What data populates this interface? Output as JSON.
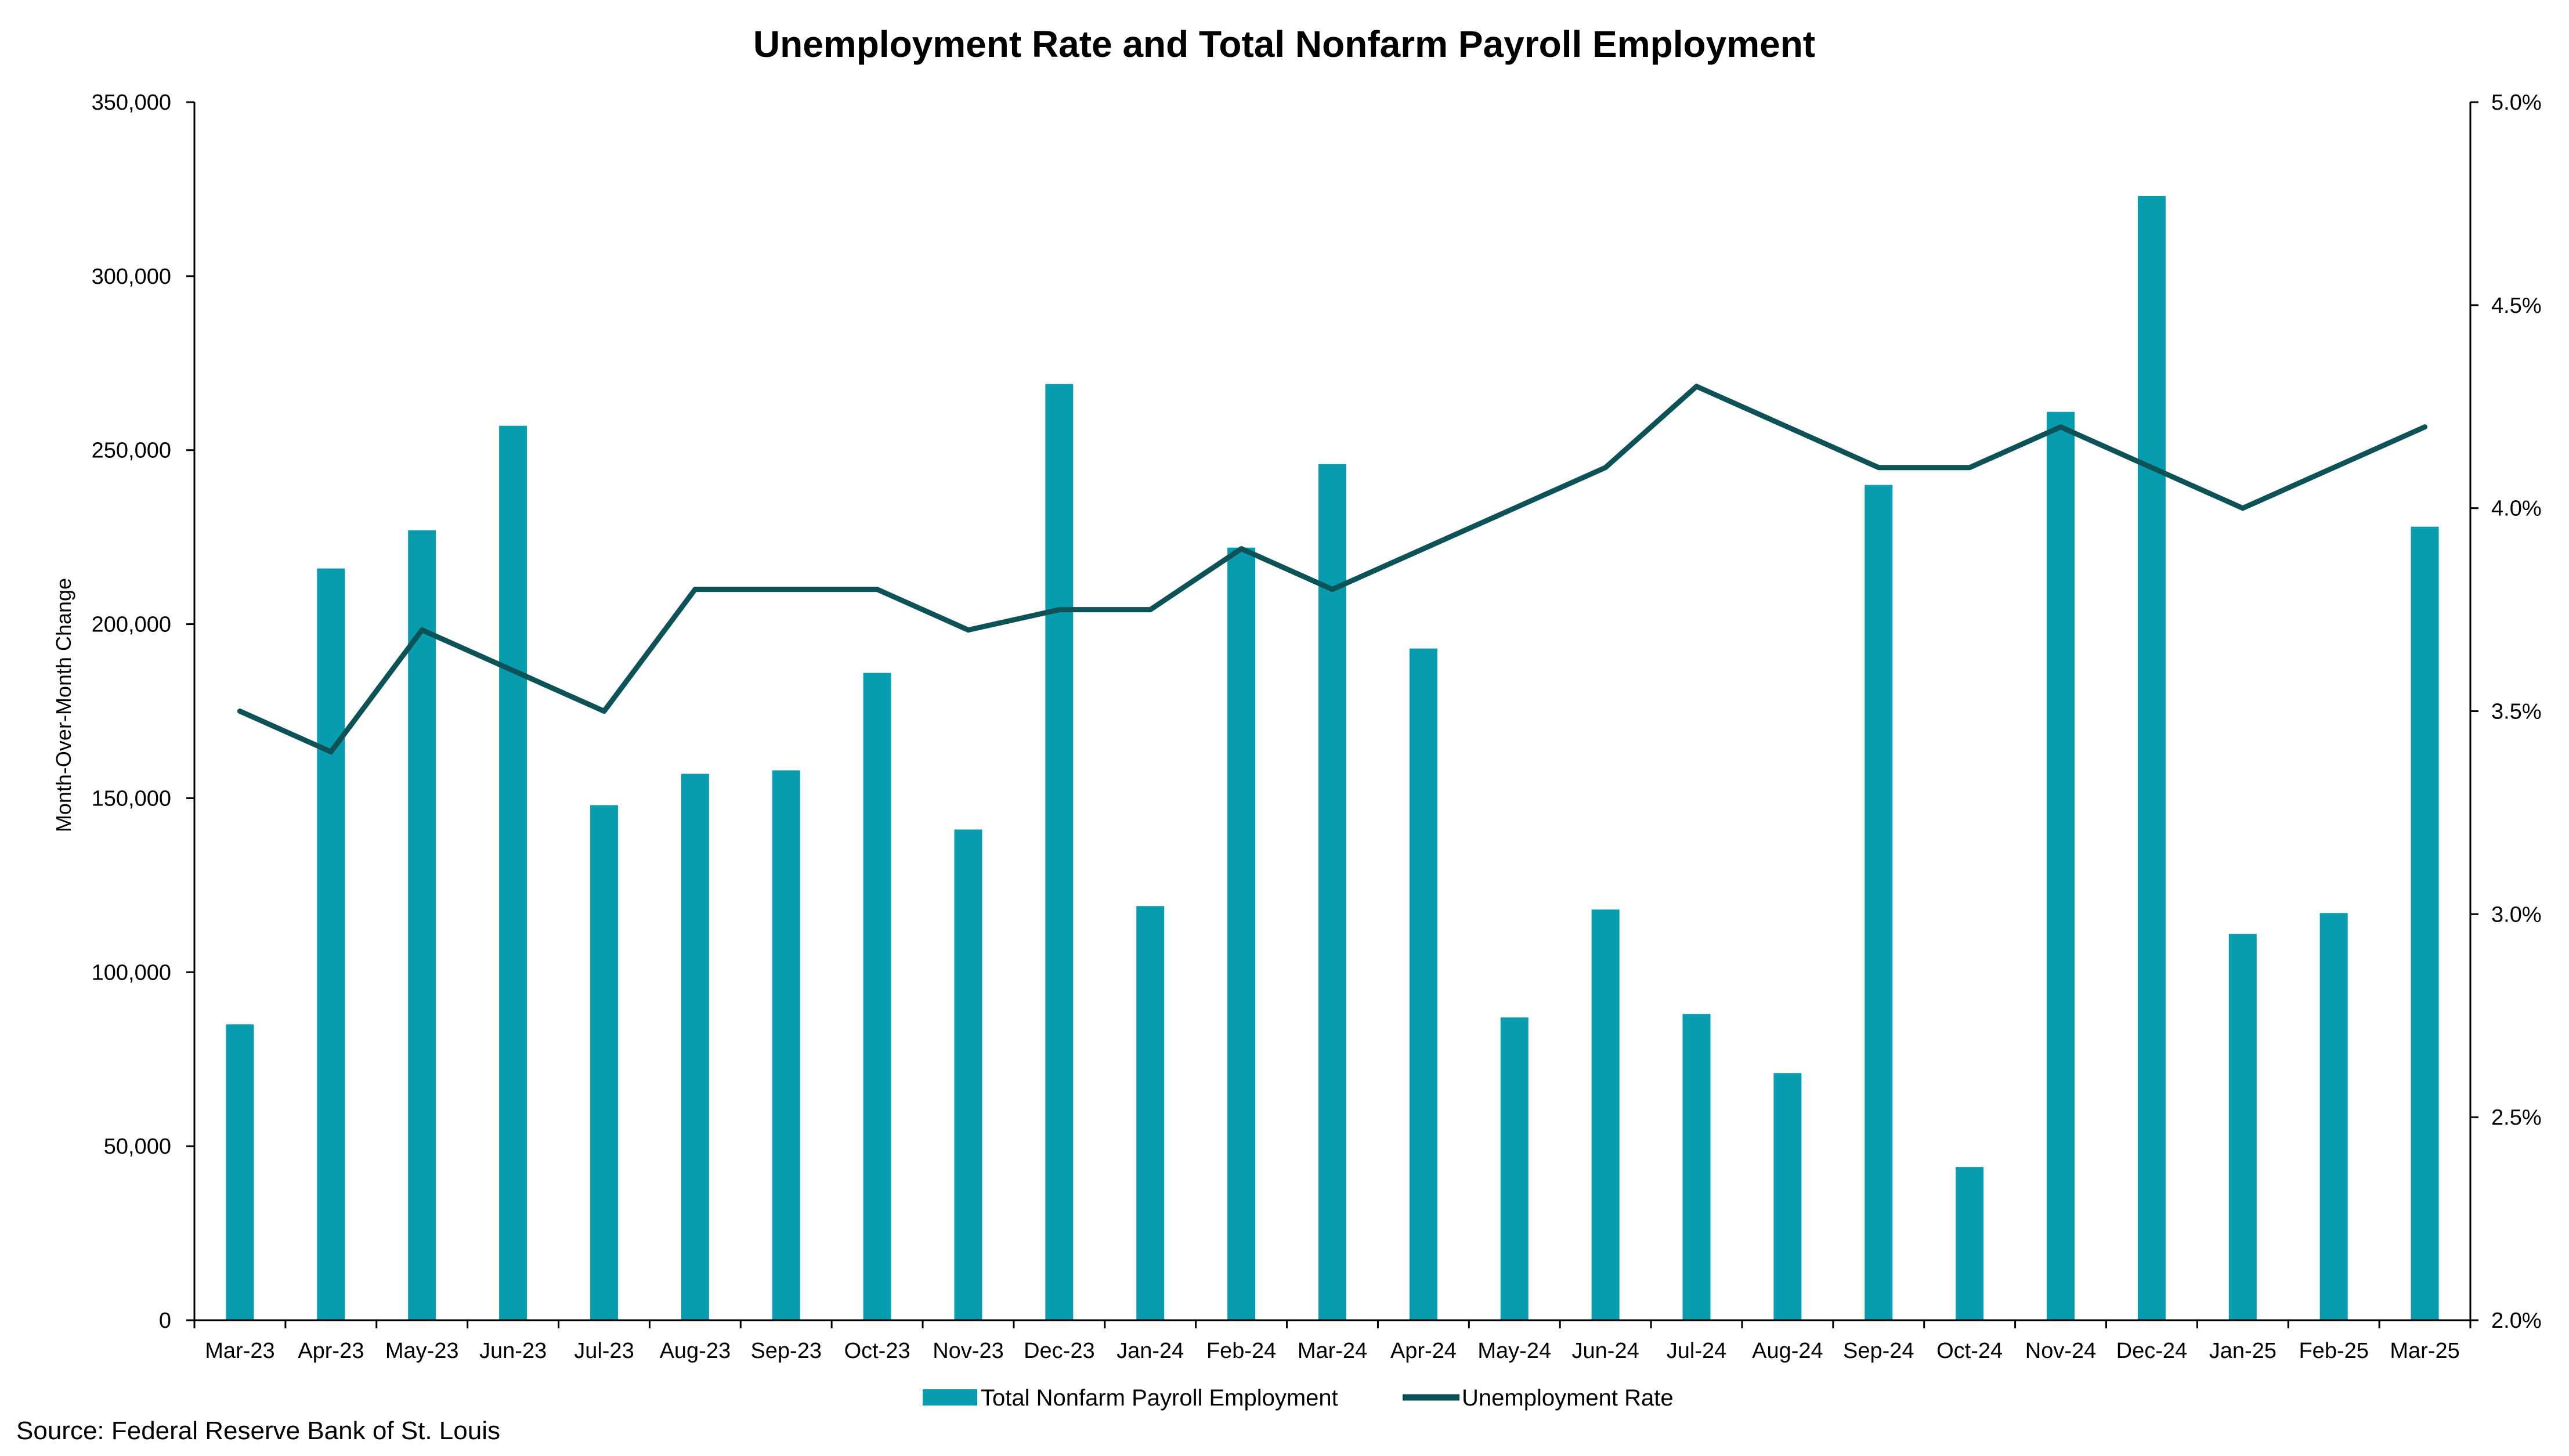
{
  "chart_data": {
    "type": "bar",
    "title": "Unemployment Rate and Total Nonfarm Payroll Employment",
    "ylabel": "Month-Over-Month Change",
    "y2label": "",
    "xlabel": "",
    "source": "Source: Federal Reserve Bank of St. Louis",
    "categories": [
      "Mar-23",
      "Apr-23",
      "May-23",
      "Jun-23",
      "Jul-23",
      "Aug-23",
      "Sep-23",
      "Oct-23",
      "Nov-23",
      "Dec-23",
      "Jan-24",
      "Feb-24",
      "Mar-24",
      "Apr-24",
      "May-24",
      "Jun-24",
      "Jul-24",
      "Aug-24",
      "Sep-24",
      "Oct-24",
      "Nov-24",
      "Dec-24",
      "Jan-25",
      "Feb-25",
      "Mar-25"
    ],
    "ylim": [
      0,
      350000
    ],
    "y_ticks": [
      0,
      50000,
      100000,
      150000,
      200000,
      250000,
      300000,
      350000
    ],
    "y_tick_labels": [
      "0",
      "50,000",
      "100,000",
      "150,000",
      "200,000",
      "250,000",
      "300,000",
      "350,000"
    ],
    "y2lim": [
      2.0,
      5.0
    ],
    "y2_ticks": [
      2.0,
      2.5,
      3.0,
      3.5,
      4.0,
      4.5,
      5.0
    ],
    "y2_tick_labels": [
      "2.0%",
      "2.5%",
      "3.0%",
      "3.5%",
      "4.0%",
      "4.5%",
      "5.0%"
    ],
    "legend_position": "bottom-center",
    "grid": false,
    "series": [
      {
        "name": "Total Nonfarm Payroll Employment",
        "type": "bar",
        "axis": "left",
        "color": "#079CAE",
        "values": [
          85000,
          216000,
          227000,
          257000,
          148000,
          157000,
          158000,
          186000,
          141000,
          269000,
          119000,
          222000,
          246000,
          193000,
          87000,
          118000,
          88000,
          71000,
          240000,
          44000,
          261000,
          323000,
          111000,
          117000,
          228000
        ]
      },
      {
        "name": "Unemployment Rate",
        "type": "line",
        "axis": "right",
        "color": "#0D5257",
        "values": [
          3.5,
          3.4,
          3.7,
          3.6,
          3.5,
          3.8,
          3.8,
          3.8,
          3.7,
          3.75,
          3.75,
          3.9,
          3.8,
          3.9,
          4.0,
          4.1,
          4.3,
          4.2,
          4.1,
          4.1,
          4.2,
          4.1,
          4.0,
          4.1,
          4.2
        ]
      }
    ]
  }
}
